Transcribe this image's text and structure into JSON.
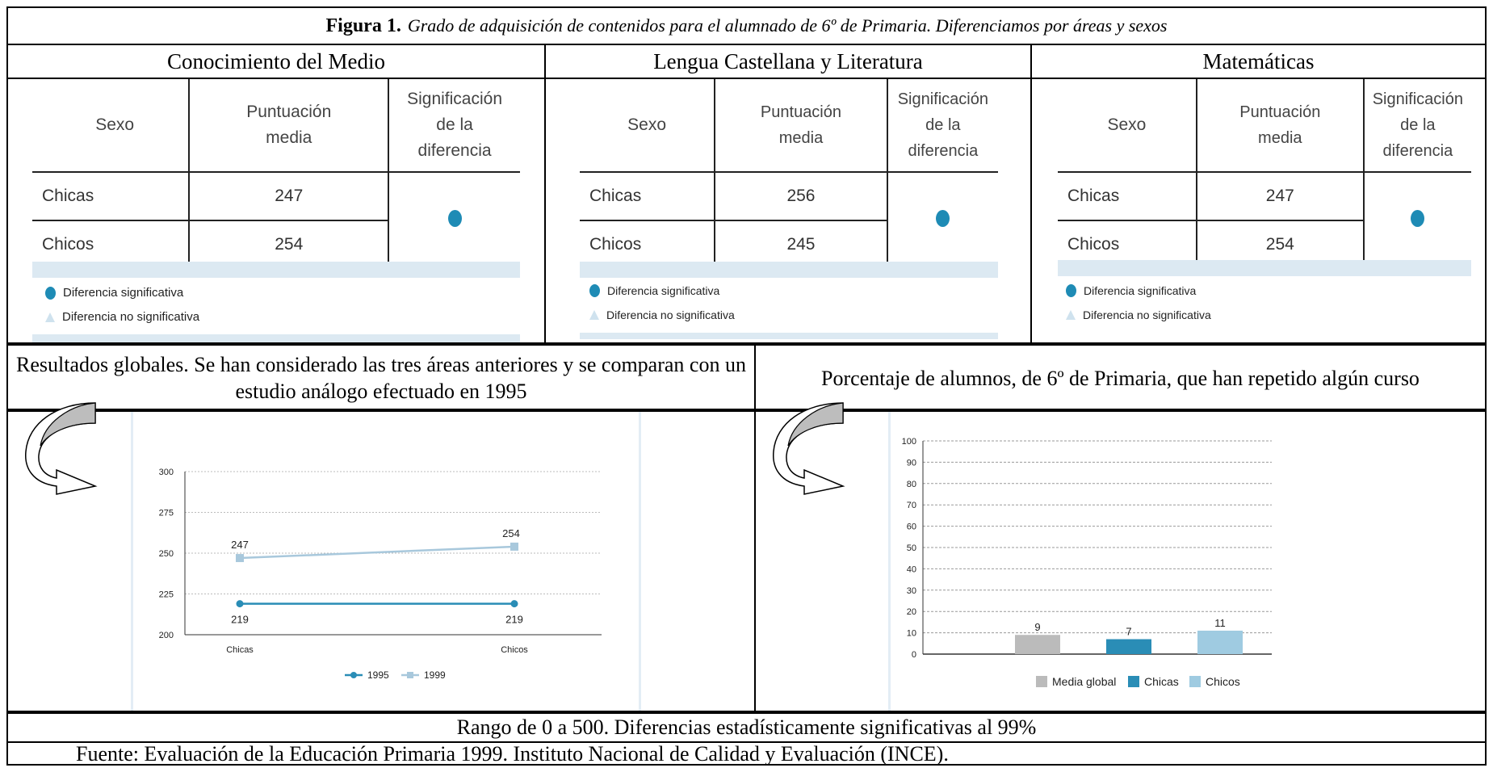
{
  "figure": {
    "label": "Figura 1.",
    "caption": "Grado de adquisición de contenidos para el alumnado de 6º de Primaria. Diferenciamos por áreas y sexos"
  },
  "areas": [
    {
      "title": "Conocimiento del Medio",
      "header": {
        "sexo": "Sexo",
        "puntuacion": "Puntuación media",
        "significacion": "Significación de la diferencia"
      },
      "rows": [
        {
          "sexo": "Chicas",
          "valor": "247"
        },
        {
          "sexo": "Chicos",
          "valor": "254"
        }
      ],
      "legend": {
        "significativa": "Diferencia significativa",
        "no_significativa": "Diferencia no significativa"
      }
    },
    {
      "title": "Lengua Castellana y Literatura",
      "header": {
        "sexo": "Sexo",
        "puntuacion": "Puntuación media",
        "significacion": "Significación de la diferencia"
      },
      "rows": [
        {
          "sexo": "Chicas",
          "valor": "256"
        },
        {
          "sexo": "Chicos",
          "valor": "245"
        }
      ],
      "legend": {
        "significativa": "Diferencia significativa",
        "no_significativa": "Diferencia no significativa"
      }
    },
    {
      "title": "Matemáticas",
      "header": {
        "sexo": "Sexo",
        "puntuacion": "Puntuación media",
        "significacion": "Significación de la diferencia"
      },
      "rows": [
        {
          "sexo": "Chicas",
          "valor": "247"
        },
        {
          "sexo": "Chicos",
          "valor": "254"
        }
      ],
      "legend": {
        "significativa": "Diferencia significativa",
        "no_significativa": "Diferencia no significativa"
      }
    }
  ],
  "sections": {
    "global_title": "Resultados globales. Se han considerado las tres áreas anteriores y se comparan con un estudio análogo efectuado en 1995",
    "repeat_title": "Porcentaje de alumnos, de 6º de Primaria, que han repetido algún curso"
  },
  "footer": {
    "range_note": "Rango de 0 a 500. Diferencias estadísticamente significativas al 99%",
    "source": "Fuente: Evaluación de la Educación Primaria 1999. Instituto Nacional de Calidad y Evaluación (INCE)."
  },
  "colors": {
    "series_1995": "#2a8db6",
    "series_1999": "#a8c8dc",
    "media_global": "#bbbbbb",
    "chicas": "#2a8db6",
    "chicos": "#9fcbe1",
    "dot": "#1e8bb5"
  },
  "chart_data": [
    {
      "type": "line",
      "categories": [
        "Chicas",
        "Chicos"
      ],
      "series": [
        {
          "name": "1995",
          "values": [
            219,
            219
          ]
        },
        {
          "name": "1999",
          "values": [
            247,
            254
          ]
        }
      ],
      "ylim": [
        200,
        300
      ],
      "yticks": [
        200,
        225,
        250,
        275,
        300
      ],
      "grid": true,
      "legend": "bottom"
    },
    {
      "type": "bar",
      "categories": [
        "Media global",
        "Chicas",
        "Chicos"
      ],
      "values": [
        9,
        7,
        11
      ],
      "ylim": [
        0,
        100
      ],
      "yticks": [
        0,
        10,
        20,
        30,
        40,
        50,
        60,
        70,
        80,
        90,
        100
      ],
      "grid": true,
      "legend": "bottom"
    }
  ]
}
